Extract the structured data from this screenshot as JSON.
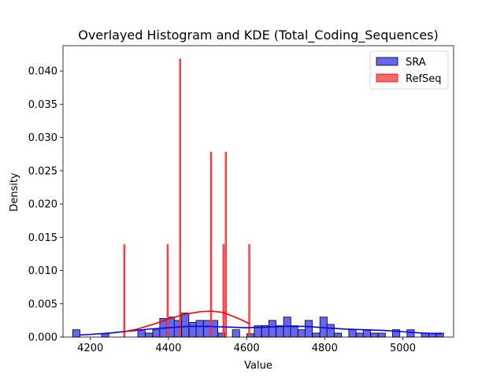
{
  "chart_data": {
    "type": "bar",
    "title": "Overlayed Histogram and KDE (Total_Coding_Sequences)",
    "xlabel": "Value",
    "ylabel": "Density",
    "xlim": [
      4130,
      5130
    ],
    "ylim": [
      0,
      0.0438
    ],
    "xticks": [
      4200,
      4400,
      4600,
      4800,
      5000
    ],
    "xtick_labels": [
      "4200",
      "4400",
      "4600",
      "4800",
      "5000"
    ],
    "yticks": [
      0,
      0.005,
      0.01,
      0.015,
      0.02,
      0.025,
      0.03,
      0.035,
      0.04
    ],
    "ytick_labels": [
      "0.000",
      "0.005",
      "0.010",
      "0.015",
      "0.020",
      "0.025",
      "0.030",
      "0.035",
      "0.040"
    ],
    "grid": false,
    "legend_position": "top-right",
    "series": [
      {
        "name": "SRA",
        "color": "#0000ff",
        "fill_color": "#6666f0",
        "bin_width": 18.6,
        "bins": [
          [
            4164,
            0.0011
          ],
          [
            4238,
            0.0005
          ],
          [
            4331,
            0.0011
          ],
          [
            4350,
            0.0006
          ],
          [
            4369,
            0.0011
          ],
          [
            4387,
            0.0028
          ],
          [
            4406,
            0.003
          ],
          [
            4424,
            0.0025
          ],
          [
            4443,
            0.0036
          ],
          [
            4462,
            0.0022
          ],
          [
            4480,
            0.0025
          ],
          [
            4499,
            0.0025
          ],
          [
            4517,
            0.0025
          ],
          [
            4536,
            0.0006
          ],
          [
            4573,
            0.0011
          ],
          [
            4610,
            0.0005
          ],
          [
            4629,
            0.0017
          ],
          [
            4648,
            0.0017
          ],
          [
            4666,
            0.0025
          ],
          [
            4685,
            0.0017
          ],
          [
            4704,
            0.003
          ],
          [
            4722,
            0.0017
          ],
          [
            4741,
            0.0011
          ],
          [
            4759,
            0.0025
          ],
          [
            4778,
            0.0006
          ],
          [
            4797,
            0.003
          ],
          [
            4815,
            0.0019
          ],
          [
            4834,
            0.0006
          ],
          [
            4871,
            0.0011
          ],
          [
            4890,
            0.0006
          ],
          [
            4908,
            0.0011
          ],
          [
            4927,
            0.0006
          ],
          [
            4946,
            0.0006
          ],
          [
            4983,
            0.0011
          ],
          [
            5020,
            0.0011
          ],
          [
            5057,
            0.0006
          ],
          [
            5076,
            0.0006
          ],
          [
            5095,
            0.0006
          ]
        ],
        "kde": [
          [
            4172,
            0.0003
          ],
          [
            4200,
            0.0004
          ],
          [
            4250,
            0.0006
          ],
          [
            4300,
            0.0009
          ],
          [
            4350,
            0.0012
          ],
          [
            4400,
            0.0014
          ],
          [
            4450,
            0.0016
          ],
          [
            4500,
            0.0016
          ],
          [
            4550,
            0.0015
          ],
          [
            4600,
            0.0014
          ],
          [
            4650,
            0.0015
          ],
          [
            4700,
            0.0016
          ],
          [
            4750,
            0.0016
          ],
          [
            4800,
            0.0014
          ],
          [
            4850,
            0.0012
          ],
          [
            4900,
            0.0011
          ],
          [
            4950,
            0.001
          ],
          [
            5000,
            0.0008
          ],
          [
            5050,
            0.0006
          ],
          [
            5100,
            0.0005
          ]
        ]
      },
      {
        "name": "RefSeq",
        "color": "#ff0000",
        "fill_color": "#f26b6b",
        "bin_width": 3.6,
        "bins": [
          [
            4287,
            0.0139
          ],
          [
            4398,
            0.0139
          ],
          [
            4430,
            0.0418
          ],
          [
            4509,
            0.0278
          ],
          [
            4541,
            0.0139
          ],
          [
            4547,
            0.0278
          ],
          [
            4607,
            0.0139
          ]
        ],
        "kde": [
          [
            4287,
            0.0008
          ],
          [
            4320,
            0.0012
          ],
          [
            4360,
            0.0019
          ],
          [
            4400,
            0.0027
          ],
          [
            4440,
            0.0034
          ],
          [
            4480,
            0.0038
          ],
          [
            4510,
            0.0039
          ],
          [
            4540,
            0.0037
          ],
          [
            4570,
            0.003
          ],
          [
            4590,
            0.0025
          ],
          [
            4607,
            0.002
          ]
        ]
      }
    ]
  }
}
